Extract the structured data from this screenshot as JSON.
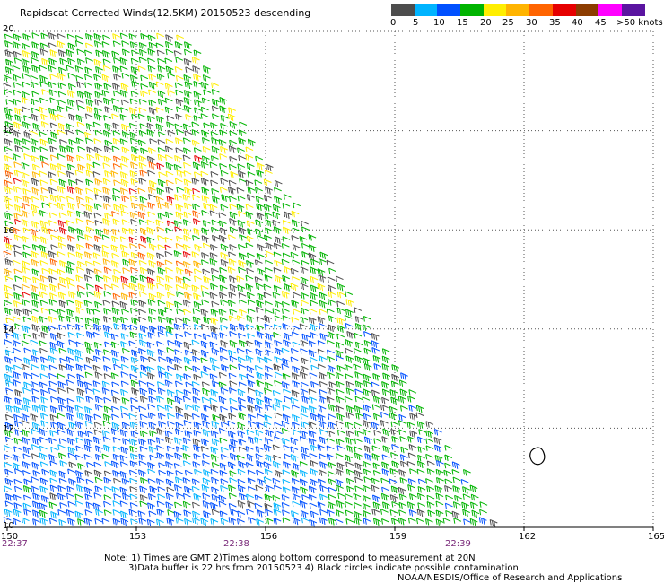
{
  "header": {
    "title": "Rapidscat Corrected Winds(12.5KM) 20150523 descending"
  },
  "legend": {
    "labels": [
      "0",
      "5",
      "10",
      "15",
      "20",
      "25",
      "30",
      "35",
      "40",
      "45",
      ">50 knots"
    ],
    "colors": [
      "#4d4d4d",
      "#00b4ff",
      "#0050ff",
      "#00b400",
      "#ffee00",
      "#ffb400",
      "#ff6400",
      "#e60000",
      "#8c3c00",
      "#ff00ff",
      "#5a14a0"
    ]
  },
  "map": {
    "lat_labels": [
      "20",
      "18",
      "16",
      "14",
      "12",
      "10"
    ],
    "lon_labels": [
      "150",
      "153",
      "156",
      "159",
      "162",
      "165"
    ],
    "times": [
      "22:37",
      "22:38",
      "22:39"
    ]
  },
  "notes": {
    "line1": "Note: 1) Times are GMT 2)Times along bottom correspond to measurement at 20N",
    "line2": "3)Data buffer is 22 hrs from 20150523 4) Black circles indicate possible contamination",
    "line3": "NOAA/NESDIS/Office of Research and Applications"
  }
}
